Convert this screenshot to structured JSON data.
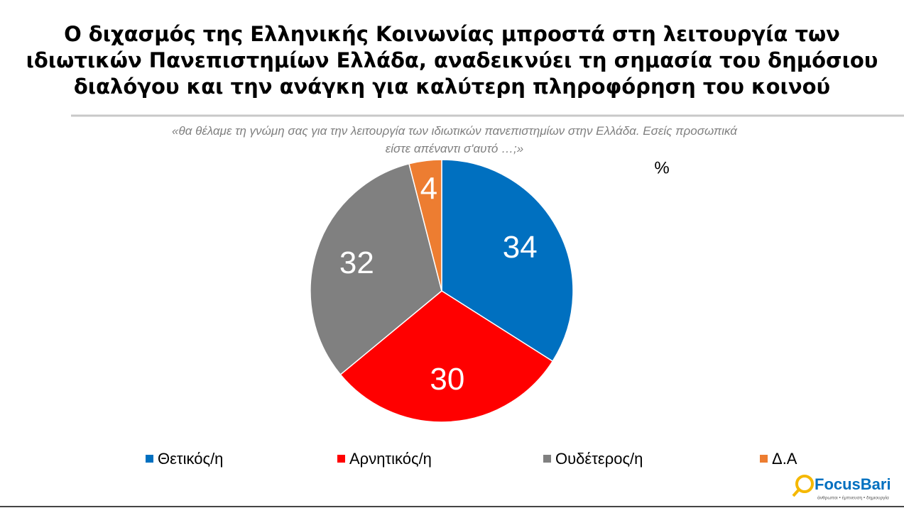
{
  "chart_data": {
    "type": "pie",
    "title": "Ο διχασμός της Ελληνικής Κοινωνίας μπροστά στη λειτουργία των ιδιωτικών Πανεπιστημίων Ελλάδα, αναδεικνύει τη σημασία του δημόσιου διαλόγου και την ανάγκη για καλύτερη πληροφόρηση του κοινού",
    "subtitle": "«θα θέλαμε τη γνώμη σας για την λειτουργία των ιδιωτικών πανεπιστημίων στην Ελλάδα. Εσείς προσωπικά είστε απέναντι σ'αυτό …;»",
    "unit": "%",
    "categories": [
      "Θετικός/η",
      "Αρνητικός/η",
      "Ουδέτερος/η",
      "Δ.Α"
    ],
    "values": [
      34,
      30,
      32,
      4
    ],
    "colors": [
      "#0070c0",
      "#ff0000",
      "#808080",
      "#ed7d31"
    ],
    "legend": "bottom"
  },
  "logo": {
    "name": "FocusBari",
    "tagline": "άνθρωποι • έμπνευση • δημιουργία"
  }
}
